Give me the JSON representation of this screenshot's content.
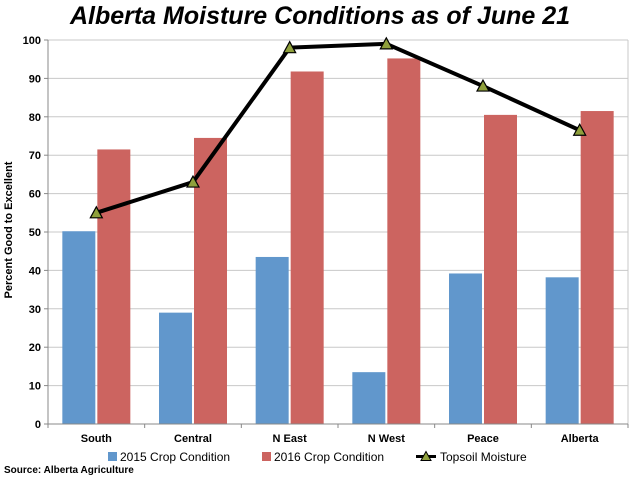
{
  "source_note": "Source: Alberta Agriculture",
  "chart_data": {
    "type": "bar",
    "title": "Alberta Moisture Conditions as of June 21",
    "xlabel": "",
    "ylabel": "Percent Good to Excellent",
    "ylim": [
      0,
      100
    ],
    "yticks": [
      0,
      10,
      20,
      30,
      40,
      50,
      60,
      70,
      80,
      90,
      100
    ],
    "grid": true,
    "legend_position": "bottom",
    "categories": [
      "South",
      "Central",
      "N East",
      "N West",
      "Peace",
      "Alberta"
    ],
    "series": [
      {
        "name": "2015 Crop Condition",
        "type": "bar",
        "color": "#6197CC",
        "values": [
          50.2,
          29.0,
          43.5,
          13.5,
          39.2,
          38.2
        ]
      },
      {
        "name": "2016 Crop Condition",
        "type": "bar",
        "color": "#CC6460",
        "values": [
          71.5,
          74.5,
          91.8,
          95.2,
          80.5,
          81.5
        ]
      },
      {
        "name": "Topsoil Moisture",
        "type": "line",
        "color": "#000000",
        "marker_color": "#8FA03C",
        "values": [
          55.0,
          63.0,
          98.0,
          99.0,
          88.0,
          76.5
        ]
      }
    ]
  }
}
